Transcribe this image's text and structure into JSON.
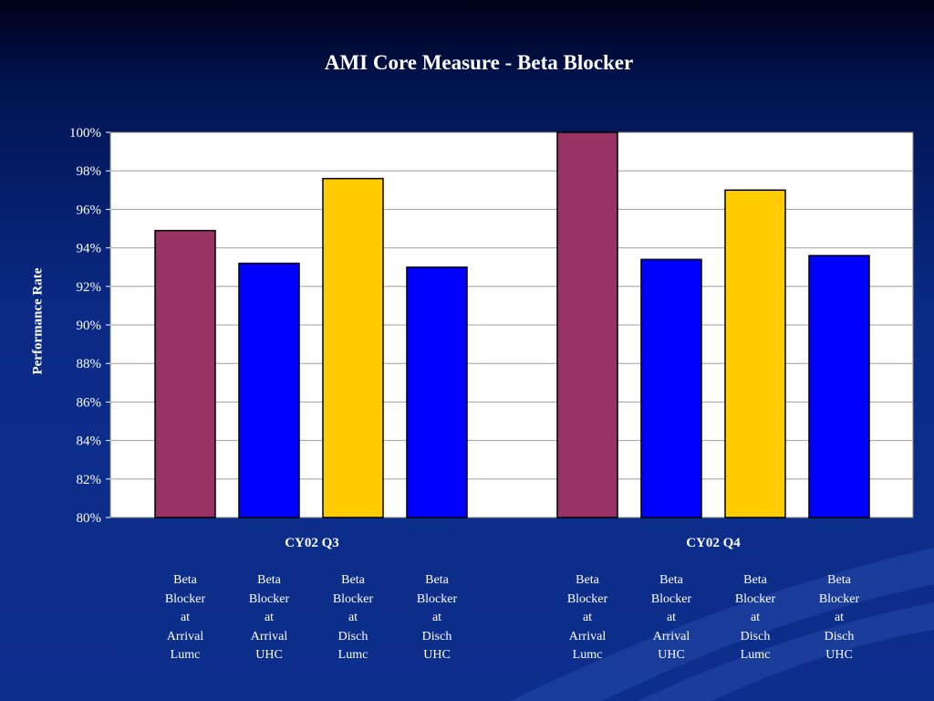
{
  "chart_data": {
    "type": "bar",
    "title": "AMI Core Measure - Beta Blocker",
    "ylabel": "Performance Rate",
    "ylim": [
      80,
      100
    ],
    "yticks": [
      "80%",
      "82%",
      "84%",
      "86%",
      "88%",
      "90%",
      "92%",
      "94%",
      "96%",
      "98%",
      "100%"
    ],
    "grid": true,
    "groups": [
      {
        "name": "CY02  Q3",
        "bars": [
          {
            "label": [
              "Beta",
              "Blocker",
              "at",
              "Arrival",
              "Lumc"
            ],
            "value": 94.9,
            "color": "#993366"
          },
          {
            "label": [
              "Beta",
              "Blocker",
              "at",
              "Arrival",
              "UHC"
            ],
            "value": 93.2,
            "color": "#0000ff"
          },
          {
            "label": [
              "Beta",
              "Blocker",
              "at",
              "Disch",
              "Lumc"
            ],
            "value": 97.6,
            "color": "#ffcc00"
          },
          {
            "label": [
              "Beta",
              "Blocker",
              "at",
              "Disch",
              "UHC"
            ],
            "value": 93.0,
            "color": "#0000ff"
          }
        ]
      },
      {
        "name": "CY02  Q4",
        "bars": [
          {
            "label": [
              "Beta",
              "Blocker",
              "at",
              "Arrival",
              "Lumc"
            ],
            "value": 100,
            "color": "#993366"
          },
          {
            "label": [
              "Beta",
              "Blocker",
              "at",
              "Arrival",
              "UHC"
            ],
            "value": 93.4,
            "color": "#0000ff"
          },
          {
            "label": [
              "Beta",
              "Blocker",
              "at",
              "Disch",
              "Lumc"
            ],
            "value": 97.0,
            "color": "#ffcc00"
          },
          {
            "label": [
              "Beta",
              "Blocker",
              "at",
              "Disch",
              "UHC"
            ],
            "value": 93.6,
            "color": "#0000ff"
          }
        ]
      }
    ]
  }
}
